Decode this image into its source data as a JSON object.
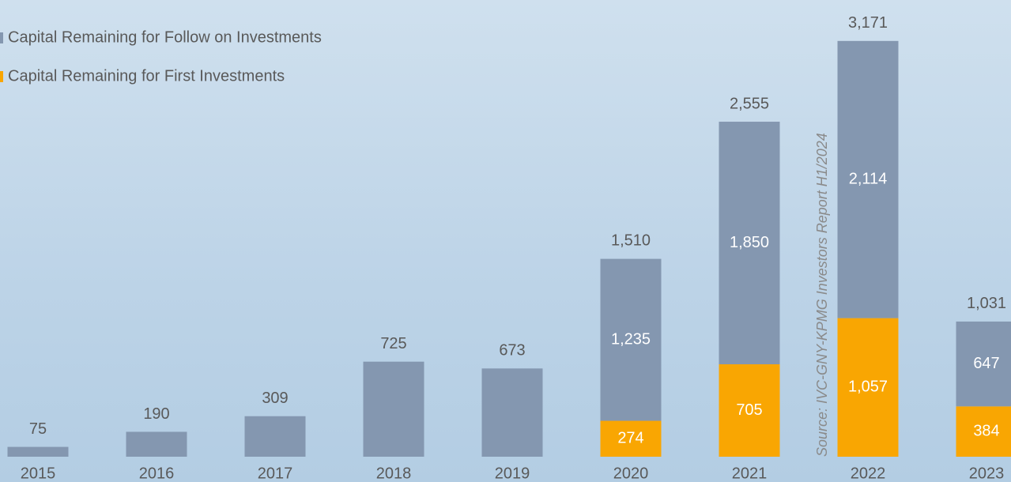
{
  "chart_data": {
    "type": "stacked_bar",
    "categories": [
      "2015",
      "2016",
      "2017",
      "2018",
      "2019",
      "2020",
      "2021",
      "2022",
      "2023"
    ],
    "series": [
      {
        "name": "Capital Remaining for First Investments",
        "color": "#f9a602",
        "values": [
          null,
          null,
          null,
          null,
          null,
          274,
          705,
          1057,
          384
        ],
        "value_labels": [
          null,
          null,
          null,
          null,
          null,
          "274",
          "705",
          "1,057",
          "384"
        ]
      },
      {
        "name": "Capital Remaining for Follow on Investments",
        "color": "#8497b0",
        "values": [
          75,
          190,
          309,
          725,
          673,
          1235,
          1850,
          2114,
          647
        ],
        "value_labels": [
          null,
          null,
          null,
          null,
          null,
          "1,235",
          "1,850",
          "2,114",
          "647"
        ]
      }
    ],
    "totals": {
      "values": [
        75,
        190,
        309,
        725,
        673,
        1510,
        2555,
        3171,
        1031
      ],
      "value_labels": [
        "75",
        "190",
        "309",
        "725",
        "673",
        "1,510",
        "2,555",
        "3,171",
        "1,031"
      ]
    },
    "annotation": "Source: IVC-GNY-KPMG Investors Report  H1/2024",
    "ylim": [
      0,
      3200
    ]
  }
}
